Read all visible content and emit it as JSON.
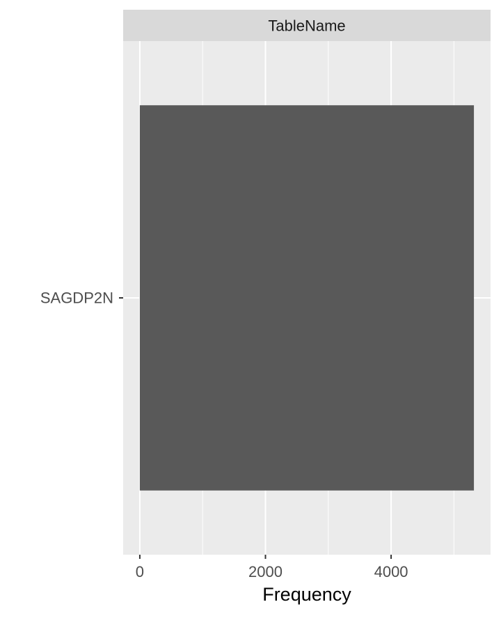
{
  "chart_data": {
    "type": "bar",
    "orientation": "horizontal",
    "facet_label": "TableName",
    "categories": [
      "SAGDP2N"
    ],
    "values": [
      5318
    ],
    "xlabel": "Frequency",
    "ylabel": "",
    "xlim": [
      -265,
      5583
    ],
    "x_ticks": [
      0,
      2000,
      4000
    ],
    "x_tick_labels": [
      "0",
      "2000",
      "4000"
    ],
    "x_minor_ticks": [
      1000,
      3000,
      5000
    ],
    "grid": true,
    "legend": "none",
    "colors": {
      "panel_background": "#ebebeb",
      "strip_background": "#d9d9d9",
      "bar_fill": "#595959",
      "grid_line": "#ffffff",
      "tick_text": "#4d4d4d",
      "tick_mark": "#333333"
    }
  }
}
